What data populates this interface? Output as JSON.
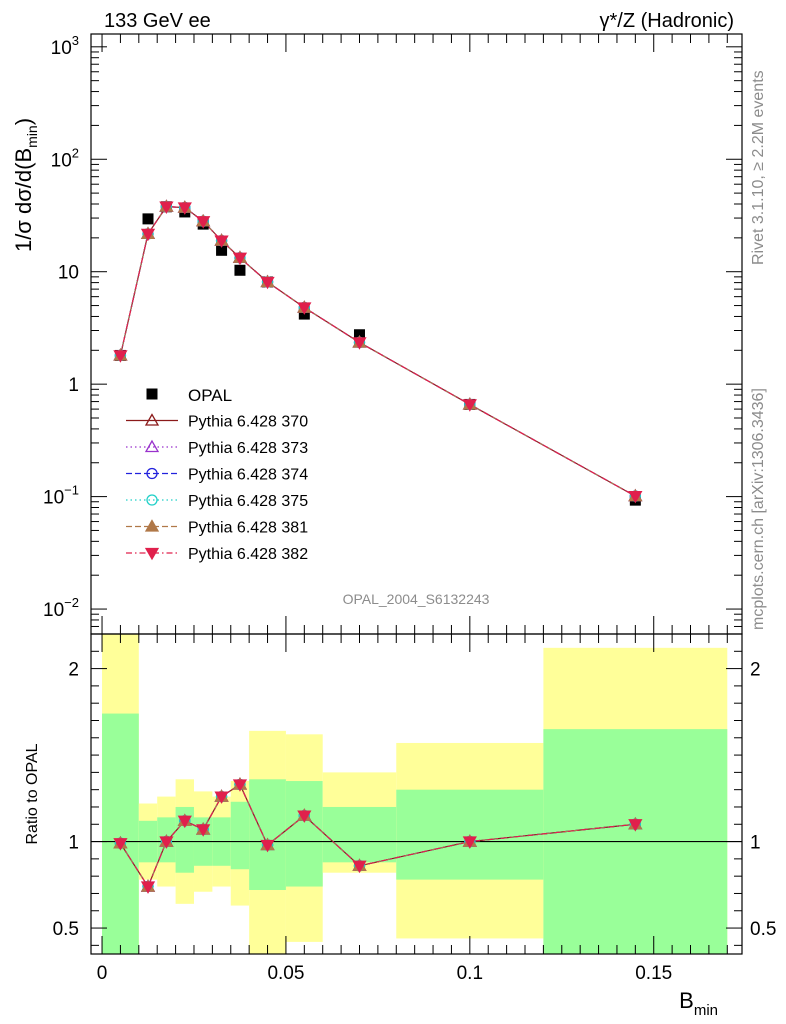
{
  "header": {
    "left": "133 GeV ee",
    "right": "γ*/Z (Hadronic)"
  },
  "side_labels": {
    "rivet": "Rivet 3.1.10, ≥ 2.2M events",
    "mcplots": "mcplots.cern.ch [arXiv:1306.3436]"
  },
  "watermark": "OPAL_2004_S6132243",
  "chart_data": [
    {
      "type": "scatter",
      "panel": "main",
      "ylabel_parts": {
        "prefix": "1/σ dσ/d(B",
        "sub": "min",
        "suffix": ")"
      },
      "yscale": "log",
      "ylim": [
        0.006,
        1300
      ],
      "xlim": [
        -0.003,
        0.174
      ],
      "yticks": [
        {
          "v": 0.01,
          "base": "10",
          "exp": "−2"
        },
        {
          "v": 0.1,
          "base": "10",
          "exp": "−1"
        },
        {
          "v": 1,
          "base": "1",
          "exp": ""
        },
        {
          "v": 10,
          "base": "10",
          "exp": ""
        },
        {
          "v": 100,
          "base": "10",
          "exp": "2"
        },
        {
          "v": 1000,
          "base": "10",
          "exp": "3"
        }
      ],
      "x": [
        0.005,
        0.0125,
        0.0175,
        0.0225,
        0.0275,
        0.0325,
        0.0375,
        0.045,
        0.055,
        0.07,
        0.1,
        0.145
      ],
      "data": {
        "name": "OPAL",
        "values": [
          1.8,
          29.5,
          37.8,
          34.0,
          26.5,
          15.5,
          10.3,
          8.1,
          4.2,
          2.75,
          0.66,
          0.093
        ]
      },
      "series": [
        {
          "name": "Pythia 6.428 370",
          "color": "#8b1a1a",
          "marker": "triangle-open",
          "dash": "solid",
          "values": [
            1.8,
            21.7,
            37.9,
            37.2,
            28.1,
            18.9,
            13.3,
            8.1,
            4.8,
            2.35,
            0.66,
            0.101
          ]
        },
        {
          "name": "Pythia 6.428 373",
          "color": "#9932cc",
          "marker": "triangle-open",
          "dash": "dot",
          "values": [
            1.8,
            21.7,
            37.9,
            37.2,
            28.1,
            18.9,
            13.3,
            8.1,
            4.8,
            2.35,
            0.66,
            0.101
          ]
        },
        {
          "name": "Pythia 6.428 374",
          "color": "#2222dd",
          "marker": "circle-open",
          "dash": "dash",
          "values": [
            1.8,
            21.7,
            37.9,
            37.2,
            28.1,
            18.9,
            13.3,
            8.1,
            4.8,
            2.35,
            0.66,
            0.101
          ]
        },
        {
          "name": "Pythia 6.428 375",
          "color": "#20d0c8",
          "marker": "circle-open",
          "dash": "dot",
          "values": [
            1.8,
            21.7,
            37.9,
            37.2,
            28.1,
            18.9,
            13.3,
            8.1,
            4.8,
            2.35,
            0.66,
            0.101
          ]
        },
        {
          "name": "Pythia 6.428 381",
          "color": "#b07848",
          "marker": "triangle-filled",
          "dash": "dash",
          "values": [
            1.8,
            21.7,
            37.9,
            37.2,
            28.1,
            18.9,
            13.3,
            8.1,
            4.8,
            2.35,
            0.66,
            0.101
          ]
        },
        {
          "name": "Pythia 6.428 382",
          "color": "#e0204c",
          "marker": "triangledown-filled",
          "dash": "dashdot",
          "values": [
            1.8,
            21.7,
            37.9,
            37.2,
            28.1,
            18.9,
            13.3,
            8.1,
            4.8,
            2.35,
            0.66,
            0.101
          ]
        }
      ]
    },
    {
      "type": "line",
      "panel": "ratio",
      "ylabel": "Ratio to OPAL",
      "xlabel_parts": {
        "prefix": "B",
        "sub": "min"
      },
      "ylim": [
        0.35,
        2.2
      ],
      "xlim": [
        -0.003,
        0.174
      ],
      "yticks": [
        0.5,
        1,
        2
      ],
      "xticks": [
        {
          "v": 0,
          "label": "0"
        },
        {
          "v": 0.05,
          "label": "0.05"
        },
        {
          "v": 0.1,
          "label": "0.1"
        },
        {
          "v": 0.15,
          "label": "0.15"
        }
      ],
      "bands": [
        {
          "x0": 0.0,
          "x1": 0.01,
          "y1_lo": 0.35,
          "y1_hi": 1.74,
          "y2_lo": 0.35,
          "y2_hi": 2.2
        },
        {
          "x0": 0.01,
          "x1": 0.015,
          "y1_lo": 0.88,
          "y1_hi": 1.12,
          "y2_lo": 0.78,
          "y2_hi": 1.22
        },
        {
          "x0": 0.015,
          "x1": 0.02,
          "y1_lo": 0.88,
          "y1_hi": 1.14,
          "y2_lo": 0.74,
          "y2_hi": 1.26
        },
        {
          "x0": 0.02,
          "x1": 0.025,
          "y1_lo": 0.82,
          "y1_hi": 1.2,
          "y2_lo": 0.64,
          "y2_hi": 1.36
        },
        {
          "x0": 0.025,
          "x1": 0.03,
          "y1_lo": 0.86,
          "y1_hi": 1.14,
          "y2_lo": 0.71,
          "y2_hi": 1.29
        },
        {
          "x0": 0.03,
          "x1": 0.035,
          "y1_lo": 0.86,
          "y1_hi": 1.14,
          "y2_lo": 0.74,
          "y2_hi": 1.26
        },
        {
          "x0": 0.035,
          "x1": 0.04,
          "y1_lo": 0.84,
          "y1_hi": 1.23,
          "y2_lo": 0.63,
          "y2_hi": 1.35
        },
        {
          "x0": 0.04,
          "x1": 0.05,
          "y1_lo": 0.72,
          "y1_hi": 1.36,
          "y2_lo": 0.35,
          "y2_hi": 1.64
        },
        {
          "x0": 0.05,
          "x1": 0.06,
          "y1_lo": 0.74,
          "y1_hi": 1.35,
          "y2_lo": 0.42,
          "y2_hi": 1.62
        },
        {
          "x0": 0.06,
          "x1": 0.08,
          "y1_lo": 0.88,
          "y1_hi": 1.2,
          "y2_lo": 0.82,
          "y2_hi": 1.4
        },
        {
          "x0": 0.08,
          "x1": 0.12,
          "y1_lo": 0.78,
          "y1_hi": 1.3,
          "y2_lo": 0.44,
          "y2_hi": 1.57
        },
        {
          "x0": 0.12,
          "x1": 0.17,
          "y1_lo": 0.35,
          "y1_hi": 1.65,
          "y2_lo": 0.35,
          "y2_hi": 2.12
        }
      ],
      "ratio_values": [
        0.99,
        0.74,
        1.0,
        1.12,
        1.07,
        1.26,
        1.33,
        0.98,
        1.15,
        0.86,
        1.0,
        1.1
      ]
    }
  ]
}
